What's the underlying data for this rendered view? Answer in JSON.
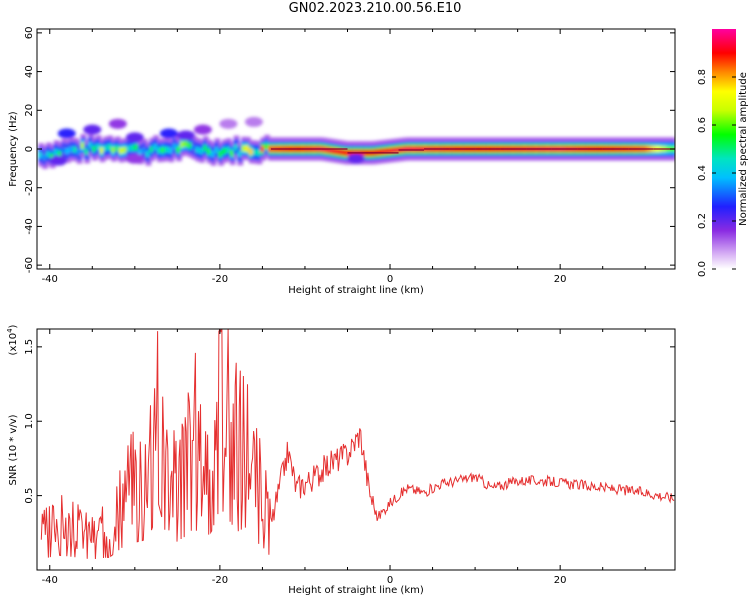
{
  "title": "GN02.2023.210.00.56.E10",
  "colors": {
    "snr_line": "#e53030",
    "background": "#ffffff",
    "axis": "#000000"
  },
  "chart_data": [
    {
      "type": "heatmap",
      "xlabel": "Height of straight line (km)",
      "ylabel": "Frequency (Hz)",
      "xlim": [
        -41.5,
        33.5
      ],
      "ylim": [
        -62,
        62
      ],
      "xticks": [
        -40,
        -20,
        0,
        20
      ],
      "yticks": [
        -60,
        -40,
        -20,
        0,
        20,
        40,
        60
      ],
      "ytick_labels": [
        "-60",
        "-40",
        "-20",
        "0",
        "20",
        "40",
        "60"
      ],
      "colorbar": {
        "label": "Normalized spectral amplitude",
        "range": [
          0,
          1
        ],
        "ticks": [
          0.0,
          0.2,
          0.4,
          0.6,
          0.8
        ],
        "tick_labels": [
          "0.0",
          "0.2",
          "0.4",
          "0.6",
          "0.8"
        ],
        "colormap": "white-purple-blue-cyan-green-yellow-red-magenta"
      },
      "ridge": {
        "description_values": [
          {
            "x": -41,
            "y": -3,
            "amp": 0.45
          },
          {
            "x": -36,
            "y": 0,
            "amp": 0.55
          },
          {
            "x": -32,
            "y": 1,
            "amp": 0.6
          },
          {
            "x": -28,
            "y": -1,
            "amp": 0.5
          },
          {
            "x": -24,
            "y": 1,
            "amp": 0.55
          },
          {
            "x": -20,
            "y": -1,
            "amp": 0.45
          },
          {
            "x": -14,
            "y": 0,
            "amp": 0.85
          },
          {
            "x": -8,
            "y": 0,
            "amp": 0.95
          },
          {
            "x": -5,
            "y": -2,
            "amp": 0.9
          },
          {
            "x": -2,
            "y": -2,
            "amp": 0.9
          },
          {
            "x": 2,
            "y": 0,
            "amp": 0.95
          },
          {
            "x": 10,
            "y": 0,
            "amp": 0.9
          },
          {
            "x": 20,
            "y": 0,
            "amp": 0.95
          },
          {
            "x": 30,
            "y": 0,
            "amp": 0.85
          },
          {
            "x": 33,
            "y": 0,
            "amp": 0.6
          }
        ],
        "scatter_blobs": [
          {
            "x": -38,
            "y": 8,
            "amp": 0.25
          },
          {
            "x": -35,
            "y": 10,
            "amp": 0.2
          },
          {
            "x": -32,
            "y": 13,
            "amp": 0.15
          },
          {
            "x": -30,
            "y": 6,
            "amp": 0.2
          },
          {
            "x": -26,
            "y": 8,
            "amp": 0.25
          },
          {
            "x": -24,
            "y": 7,
            "amp": 0.2
          },
          {
            "x": -22,
            "y": 10,
            "amp": 0.15
          },
          {
            "x": -19,
            "y": 13,
            "amp": 0.1
          },
          {
            "x": -16,
            "y": 14,
            "amp": 0.1
          },
          {
            "x": -39,
            "y": -6,
            "amp": 0.2
          },
          {
            "x": -30,
            "y": -5,
            "amp": 0.15
          },
          {
            "x": -4,
            "y": -5,
            "amp": 0.2
          }
        ]
      }
    },
    {
      "type": "line",
      "xlabel": "Height of straight line (km)",
      "ylabel": "SNR (10 * v/v)",
      "yscale_label": "(x10",
      "yscale_exp": "4",
      "yscale_close": ")",
      "xlim": [
        -41.5,
        33.5
      ],
      "ylim": [
        0.0,
        1.62
      ],
      "xticks": [
        -40,
        -20,
        0,
        20
      ],
      "yticks": [
        0.5,
        1.0,
        1.5
      ],
      "ytick_labels": [
        "0.5",
        "1.0",
        "1.5"
      ],
      "series": [
        {
          "x": [
            -41,
            -39,
            -37,
            -35,
            -33,
            -31,
            -29,
            -28,
            -27.2,
            -26,
            -24,
            -23,
            -22,
            -21,
            -20,
            -19.5,
            -18,
            -17,
            -16,
            -15,
            -14,
            -13,
            -12,
            -11,
            -9,
            -7,
            -5,
            -3.5,
            -2.5,
            -1.5,
            0,
            2,
            4,
            6,
            8,
            10,
            12,
            15,
            18,
            21,
            24,
            27,
            30,
            33.5
          ],
          "y": [
            0.25,
            0.35,
            0.3,
            0.25,
            0.3,
            0.6,
            0.7,
            0.95,
            1.55,
            0.55,
            0.8,
            1.0,
            0.7,
            0.9,
            1.45,
            1.35,
            0.9,
            1.0,
            0.7,
            0.55,
            0.3,
            0.55,
            0.8,
            0.55,
            0.62,
            0.72,
            0.78,
            0.92,
            0.55,
            0.35,
            0.45,
            0.55,
            0.52,
            0.58,
            0.6,
            0.63,
            0.55,
            0.6,
            0.6,
            0.58,
            0.56,
            0.54,
            0.52,
            0.48
          ],
          "color": "#e53030"
        }
      ]
    }
  ]
}
